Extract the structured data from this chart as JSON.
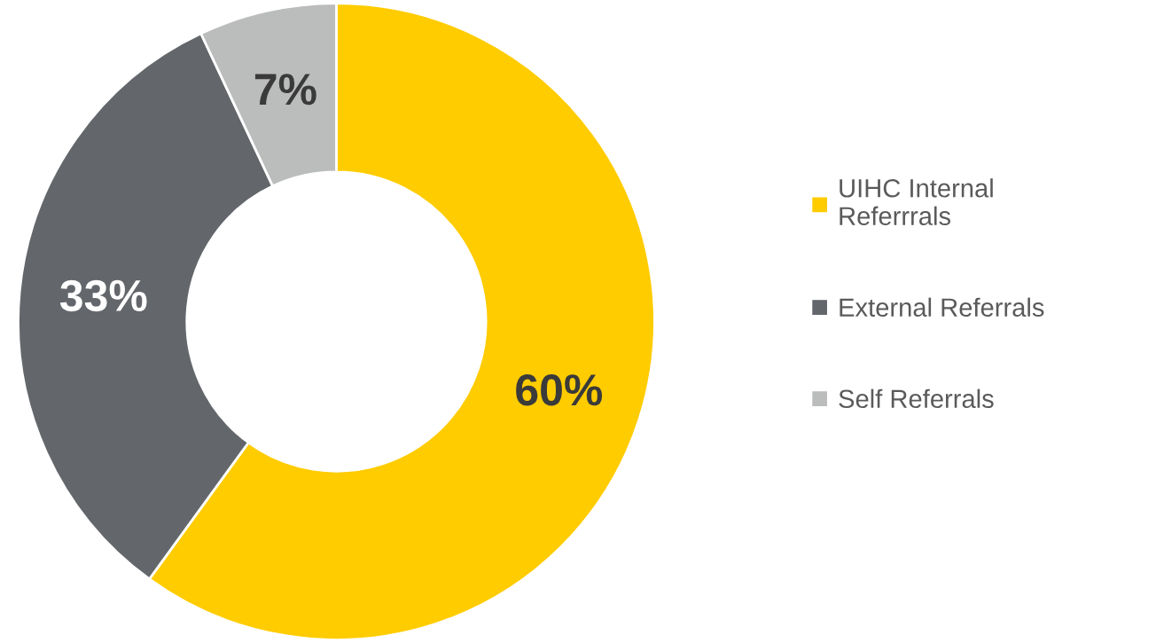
{
  "chart_data": {
    "type": "donut",
    "categories": [
      "UIHC Internal Referrrals",
      "External Referrals",
      "Self Referrals"
    ],
    "values": [
      60,
      33,
      7
    ],
    "colors": [
      "#ffcc00",
      "#63666a",
      "#bbbcbc"
    ],
    "value_labels": [
      "60%",
      "33%",
      "7%"
    ],
    "legend": "right"
  }
}
